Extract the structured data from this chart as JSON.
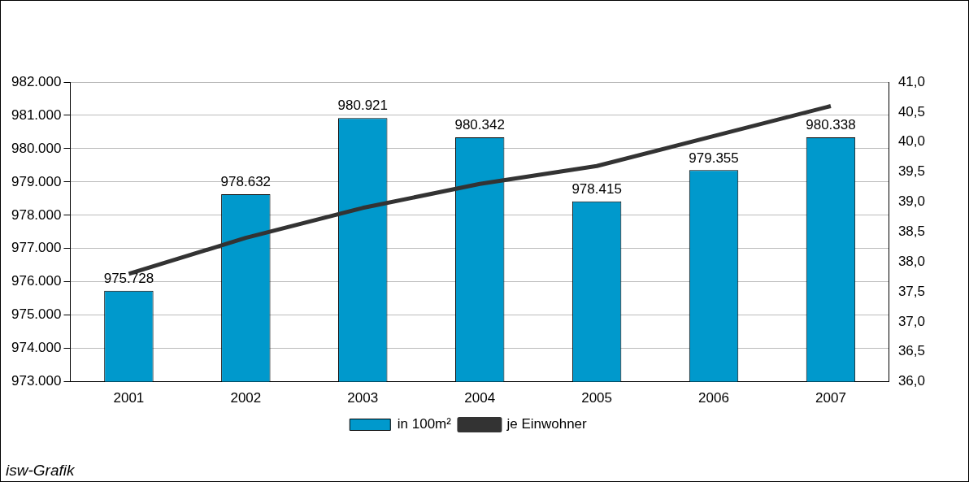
{
  "chart_data": {
    "type": "bar",
    "categories": [
      "2001",
      "2002",
      "2003",
      "2004",
      "2005",
      "2006",
      "2007"
    ],
    "series": [
      {
        "name": "in 100m²",
        "color": "#0099cc",
        "values": [
          975728,
          978632,
          980921,
          980342,
          978415,
          979355,
          980338
        ],
        "value_labels": [
          "975.728",
          "978.632",
          "980.921",
          "980.342",
          "978.415",
          "979.355",
          "980.338"
        ]
      },
      {
        "name": "je Einwohner",
        "type": "line",
        "axis": "y2",
        "color": "#333333",
        "values": [
          37.8,
          38.4,
          38.9,
          39.3,
          39.6,
          40.1,
          40.6
        ]
      }
    ],
    "ylim": [
      973000,
      982000
    ],
    "yticks": [
      {
        "value": 973000,
        "label": "973.000"
      },
      {
        "value": 974000,
        "label": "974.000"
      },
      {
        "value": 975000,
        "label": "975.000"
      },
      {
        "value": 976000,
        "label": "976.000"
      },
      {
        "value": 977000,
        "label": "977.000"
      },
      {
        "value": 978000,
        "label": "978.000"
      },
      {
        "value": 979000,
        "label": "979.000"
      },
      {
        "value": 980000,
        "label": "980.000"
      },
      {
        "value": 981000,
        "label": "981.000"
      },
      {
        "value": 982000,
        "label": "982.000"
      }
    ],
    "y2lim": [
      36,
      41
    ],
    "y2ticks": [
      {
        "value": 36,
        "label": "36,0"
      },
      {
        "value": 36.5,
        "label": "36,5"
      },
      {
        "value": 37,
        "label": "37,0"
      },
      {
        "value": 37.5,
        "label": "37,5"
      },
      {
        "value": 38,
        "label": "38,0"
      },
      {
        "value": 38.5,
        "label": "38,5"
      },
      {
        "value": 39,
        "label": "39,0"
      },
      {
        "value": 39.5,
        "label": "39,5"
      },
      {
        "value": 40,
        "label": "40,0"
      },
      {
        "value": 40.5,
        "label": "40,5"
      },
      {
        "value": 41,
        "label": "41,0"
      }
    ],
    "grid": "y",
    "legend": "bottom",
    "marker": "none",
    "line_style": "solid",
    "annotations": [
      "isw-Grafik"
    ]
  }
}
